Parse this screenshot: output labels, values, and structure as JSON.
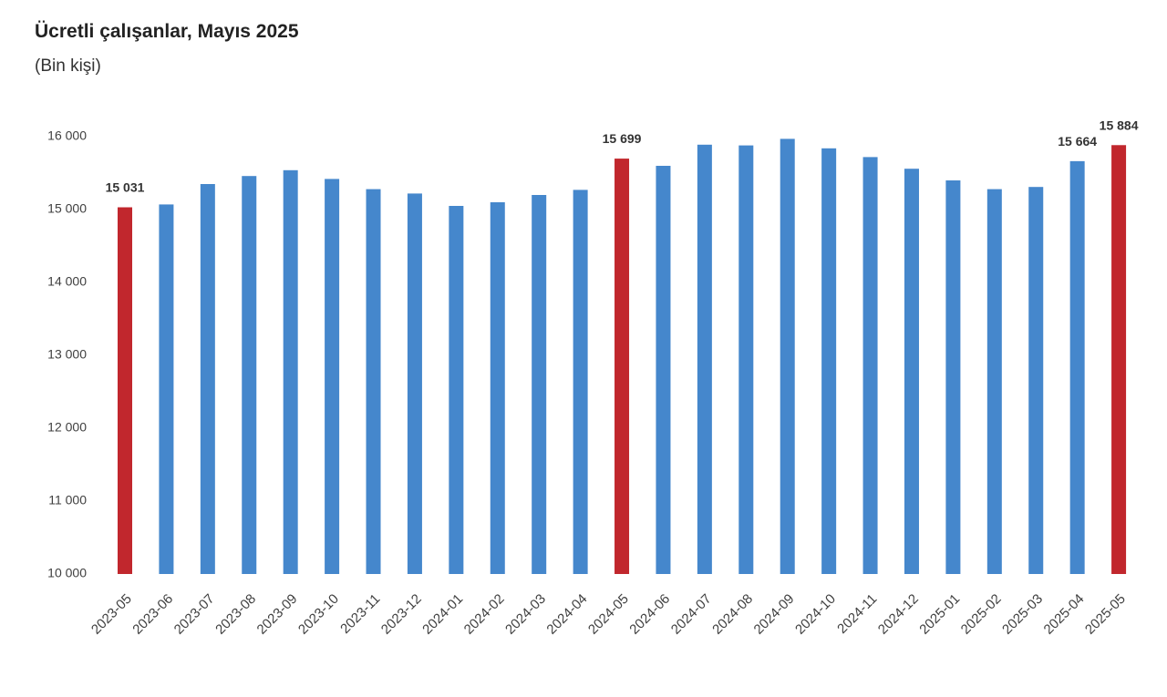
{
  "chart_data": {
    "type": "bar",
    "title": "Ücretli çalışanlar, Mayıs 2025",
    "subtitle": "(Bin kişi)",
    "categories": [
      "2023-05",
      "2023-06",
      "2023-07",
      "2023-08",
      "2023-09",
      "2023-10",
      "2023-11",
      "2023-12",
      "2024-01",
      "2024-02",
      "2024-03",
      "2024-04",
      "2024-05",
      "2024-06",
      "2024-07",
      "2024-08",
      "2024-09",
      "2024-10",
      "2024-11",
      "2024-12",
      "2025-01",
      "2025-02",
      "2025-03",
      "2025-04",
      "2025-05"
    ],
    "values": [
      15031,
      15070,
      15350,
      15460,
      15540,
      15420,
      15280,
      15220,
      15050,
      15100,
      15200,
      15270,
      15699,
      15600,
      15890,
      15880,
      15970,
      15840,
      15720,
      15560,
      15400,
      15280,
      15310,
      15664,
      15884
    ],
    "ylim": [
      10000,
      16000
    ],
    "yticks": [
      10000,
      11000,
      12000,
      13000,
      14000,
      15000,
      16000
    ],
    "ytick_labels": [
      "10 000",
      "11 000",
      "12 000",
      "13 000",
      "14 000",
      "15 000",
      "16 000"
    ],
    "data_labels": [
      {
        "category": "2023-05",
        "text": "15 031"
      },
      {
        "category": "2024-05",
        "text": "15 699"
      },
      {
        "category": "2025-04",
        "text": "15 664"
      },
      {
        "category": "2025-05",
        "text": "15 884"
      }
    ],
    "highlight_categories": [
      "2023-05",
      "2024-05",
      "2025-05"
    ],
    "colors": {
      "bar": "#4587CC",
      "highlight": "#C1272D"
    },
    "grid": false
  }
}
